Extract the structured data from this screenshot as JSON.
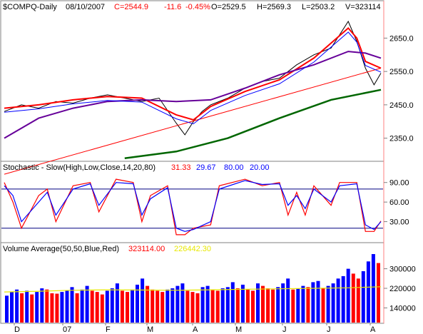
{
  "header": {
    "symbol": "$COMPQ-Daily",
    "date": "08/10/2007",
    "close": "C=2544.9",
    "change": "-11.6",
    "change_pct": "-0.45%",
    "open": "O=2529.5",
    "high": "H=2569.3",
    "low": "L=2503.2",
    "volume": "V=323114"
  },
  "colors": {
    "price": "#000000",
    "ma_fast": "#ff0000",
    "ma_blue": "#0000ff",
    "ma_purple": "#660099",
    "ma_green": "#006600",
    "trend": "#ff0000",
    "stoch_k": "#ff0000",
    "stoch_d": "#0000ff",
    "vol_up": "#0000ff",
    "vol_down": "#ff0000",
    "vol_avg": "#e8e800"
  },
  "chart_data": [
    {
      "type": "line",
      "panel": "price",
      "title": "$COMPQ-Daily",
      "ylim": [
        2285,
        2730
      ],
      "yticks": [
        "2650.0",
        "2550.0",
        "2450.0",
        "2350.0"
      ],
      "x_labels": [
        "D",
        "07",
        "F",
        "M",
        "A",
        "M",
        "J",
        "J",
        "A"
      ],
      "series": [
        {
          "name": "Price",
          "x": [
            0,
            10,
            20,
            30,
            40,
            50,
            60,
            70,
            80,
            90,
            100,
            105,
            110,
            115,
            120,
            130,
            140,
            150,
            160,
            170,
            180,
            190,
            200,
            205,
            210,
            215,
            219
          ],
          "values": [
            2430,
            2450,
            2440,
            2460,
            2455,
            2470,
            2480,
            2470,
            2460,
            2470,
            2395,
            2360,
            2400,
            2430,
            2450,
            2470,
            2500,
            2520,
            2530,
            2570,
            2600,
            2620,
            2700,
            2640,
            2560,
            2510,
            2545
          ]
        },
        {
          "name": "MA10",
          "x": [
            0,
            20,
            40,
            60,
            80,
            100,
            110,
            120,
            140,
            160,
            180,
            200,
            205,
            210,
            219
          ],
          "values": [
            2440,
            2450,
            2465,
            2475,
            2470,
            2420,
            2405,
            2445,
            2490,
            2525,
            2590,
            2680,
            2650,
            2580,
            2560
          ]
        },
        {
          "name": "MA50",
          "x": [
            0,
            20,
            40,
            60,
            80,
            100,
            120,
            140,
            160,
            180,
            200,
            210,
            219
          ],
          "values": [
            2350,
            2410,
            2440,
            2460,
            2465,
            2460,
            2465,
            2500,
            2540,
            2570,
            2610,
            2605,
            2590
          ]
        },
        {
          "name": "MA200",
          "x": [
            70,
            100,
            130,
            160,
            190,
            219
          ],
          "values": [
            2290,
            2310,
            2350,
            2410,
            2465,
            2495
          ]
        },
        {
          "name": "Trend",
          "x": [
            0,
            219
          ],
          "values": [
            2242,
            2560
          ]
        }
      ]
    },
    {
      "type": "line",
      "panel": "stochastic",
      "title": "Stochastic - Slow(High,Low,Close,14,20,80)",
      "readouts": [
        "31.33",
        "29.67",
        "80.00",
        "20.00"
      ],
      "ylim": [
        0,
        105
      ],
      "yticks": [
        "90.00",
        "60.00",
        "30.00"
      ],
      "levels": [
        80,
        20
      ],
      "series": [
        {
          "name": "%K",
          "x": [
            0,
            5,
            10,
            20,
            25,
            30,
            40,
            50,
            55,
            65,
            75,
            80,
            85,
            95,
            100,
            105,
            110,
            120,
            125,
            140,
            150,
            160,
            165,
            170,
            175,
            180,
            190,
            195,
            205,
            210,
            215,
            219
          ],
          "values": [
            90,
            60,
            20,
            70,
            80,
            30,
            85,
            90,
            45,
            95,
            90,
            30,
            70,
            85,
            10,
            10,
            20,
            25,
            85,
            95,
            85,
            90,
            40,
            75,
            40,
            85,
            55,
            90,
            90,
            15,
            15,
            31
          ]
        },
        {
          "name": "%D",
          "x": [
            0,
            5,
            10,
            20,
            25,
            30,
            40,
            50,
            55,
            65,
            75,
            80,
            85,
            95,
            100,
            105,
            110,
            120,
            125,
            140,
            150,
            160,
            165,
            170,
            175,
            180,
            190,
            195,
            205,
            210,
            215,
            219
          ],
          "values": [
            85,
            70,
            30,
            60,
            75,
            40,
            80,
            88,
            55,
            90,
            88,
            40,
            65,
            82,
            20,
            15,
            18,
            30,
            80,
            93,
            87,
            88,
            55,
            70,
            50,
            80,
            60,
            85,
            88,
            25,
            18,
            30
          ]
        }
      ]
    },
    {
      "type": "bar",
      "panel": "volume",
      "title": "Volume Average(50,50,Blue,Red)",
      "readouts": [
        "323114.00",
        "226442.30"
      ],
      "ylim": [
        80000,
        360000
      ],
      "yticks": [
        "300000",
        "220000",
        "140000"
      ],
      "series": [
        {
          "name": "Volume",
          "values": [
            190000,
            205000,
            215000,
            200000,
            210000,
            195000,
            205000,
            220000,
            215000,
            200000,
            198000,
            205000,
            212000,
            225000,
            200000,
            215000,
            230000,
            210000,
            205000,
            195000,
            210000,
            220000,
            240000,
            210000,
            205000,
            215000,
            235000,
            260000,
            230000,
            215000,
            210000,
            205000,
            215000,
            220000,
            230000,
            240000,
            210000,
            205000,
            200000,
            225000,
            230000,
            215000,
            210000,
            220000,
            225000,
            245000,
            220000,
            235000,
            215000,
            210000,
            240000,
            230000,
            220000,
            215000,
            225000,
            240000,
            260000,
            215000,
            220000,
            230000,
            225000,
            245000,
            250000,
            220000,
            230000,
            240000,
            260000,
            270000,
            300000,
            280000,
            260000,
            290000,
            330000,
            360000,
            323114
          ]
        },
        {
          "name": "Avg",
          "values": [
            205000,
            208000,
            212000,
            214000,
            213000,
            212000,
            214000,
            216000,
            218000,
            220000,
            222000,
            226442
          ]
        }
      ]
    }
  ]
}
